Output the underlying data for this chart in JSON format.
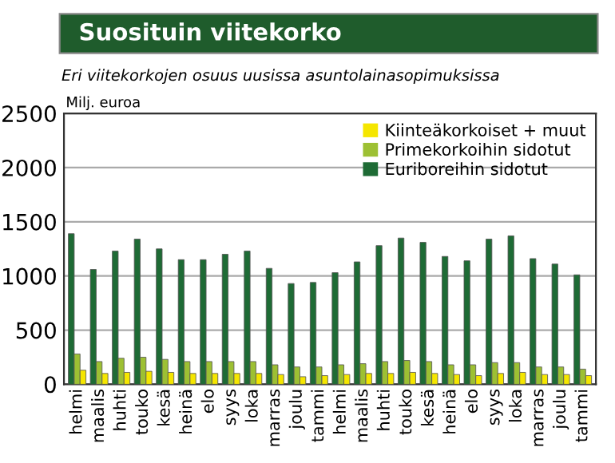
{
  "chart_data": {
    "type": "bar",
    "title": "Suosituin viitekorko",
    "subtitle": "Eri viitekorkojen osuus uusissa asuntolainasopimuksissa",
    "ylabel": "Milj. euroa",
    "categories": [
      "helmi",
      "maalis",
      "huhti",
      "touko",
      "kesä",
      "heinä",
      "elo",
      "syys",
      "loka",
      "marras",
      "joulu",
      "tammi",
      "helmi",
      "maalis",
      "huhti",
      "touko",
      "kesä",
      "heinä",
      "elo",
      "syys",
      "loka",
      "marras",
      "joulu",
      "tammi"
    ],
    "series": [
      {
        "name": "Euriboreihin sidotut",
        "color": "#1e6b35",
        "values": [
          1390,
          1060,
          1230,
          1340,
          1250,
          1150,
          1150,
          1200,
          1230,
          1070,
          930,
          940,
          1030,
          1130,
          1280,
          1350,
          1310,
          1180,
          1140,
          1340,
          1370,
          1160,
          1110,
          1010
        ]
      },
      {
        "name": "Primekorkoihin sidotut",
        "color": "#9dc033",
        "values": [
          280,
          210,
          240,
          250,
          230,
          210,
          210,
          210,
          210,
          180,
          160,
          160,
          180,
          190,
          210,
          220,
          210,
          180,
          180,
          200,
          200,
          160,
          160,
          140
        ]
      },
      {
        "name": "Kiinteäkorkoiset + muut",
        "color": "#f5e600",
        "values": [
          130,
          100,
          110,
          120,
          110,
          100,
          100,
          100,
          100,
          90,
          70,
          80,
          90,
          100,
          100,
          110,
          100,
          90,
          80,
          100,
          110,
          90,
          90,
          80
        ]
      }
    ],
    "ylim": [
      0,
      2500
    ],
    "yticks": [
      0,
      500,
      1000,
      1500,
      2000,
      2500
    ],
    "grid": "y",
    "legend": "top right"
  }
}
